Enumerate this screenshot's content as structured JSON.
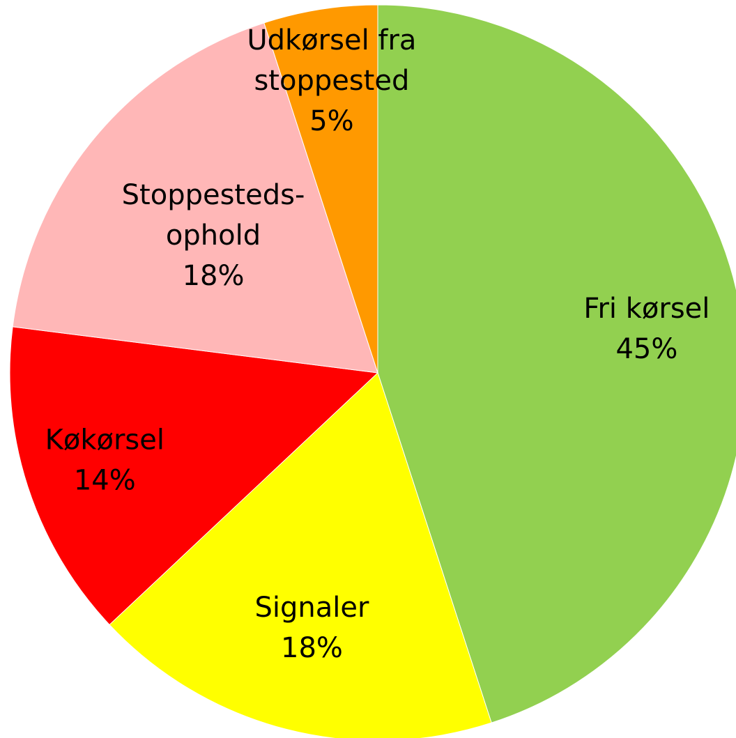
{
  "chart_data": {
    "type": "pie",
    "categories": [
      "Fri kørsel",
      "Signaler",
      "Køkørsel",
      "Stoppesteds-\nophold",
      "Udkørsel fra\nstoppested"
    ],
    "values": [
      45,
      18,
      14,
      18,
      5
    ],
    "value_labels": [
      "45%",
      "18%",
      "14%",
      "18%",
      "5%"
    ],
    "colors": [
      "#92d050",
      "#ffff00",
      "#ff0000",
      "#ffb7b7",
      "#ff9900"
    ]
  }
}
